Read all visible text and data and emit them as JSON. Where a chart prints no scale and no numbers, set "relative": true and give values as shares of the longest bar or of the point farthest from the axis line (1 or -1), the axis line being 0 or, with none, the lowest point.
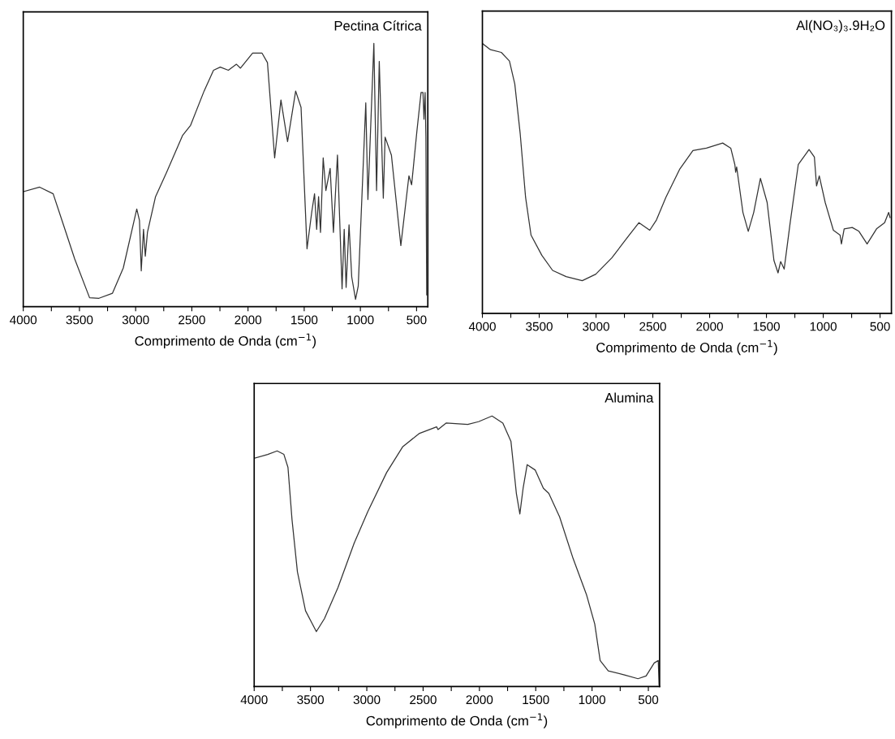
{
  "chart_data": [
    {
      "type": "line",
      "title": "Pectina Cítrica",
      "xlabel": "Comprimento de Onda (cm$^{−1}$)",
      "relative": true,
      "tick_labels": "x",
      "grid": false,
      "legend": false,
      "xlim": [
        4000,
        400
      ],
      "xticks": [
        4000,
        {
          "value": 3750,
          "label": null
        },
        3500,
        {
          "value": 3250,
          "label": null
        },
        3000,
        {
          "value": 2750,
          "label": null
        },
        2500,
        {
          "value": 2250,
          "label": null
        },
        2000,
        {
          "value": 1750,
          "label": null
        },
        1500,
        {
          "value": 1250,
          "label": null
        },
        1000,
        {
          "value": 750,
          "label": null
        },
        500
      ],
      "series": [
        {
          "color": "#333333",
          "x": [
            4000,
            3854,
            3734,
            3638,
            3542,
            3410,
            3326,
            3206,
            3110,
            2990,
            2966,
            2950,
            2930,
            2914,
            2895,
            2823,
            2727,
            2583,
            2511,
            2391,
            2307,
            2247,
            2175,
            2103,
            2067,
            1959,
            1875,
            1827,
            1763,
            1707,
            1648,
            1576,
            1528,
            1475,
            1432,
            1408,
            1389,
            1372,
            1355,
            1331,
            1307,
            1269,
            1240,
            1204,
            1163,
            1144,
            1127,
            1101,
            1077,
            1043,
            1019,
            952,
            933,
            880,
            856,
            832,
            796,
            780,
            724,
            640,
            568,
            544,
            497,
            460,
            443,
            434,
            424,
            417,
            410
          ],
          "values": [
            0.437,
            0.454,
            0.429,
            0.305,
            0.181,
            0.034,
            0.032,
            0.051,
            0.147,
            0.371,
            0.328,
            0.136,
            0.294,
            0.192,
            0.282,
            0.418,
            0.508,
            0.65,
            0.689,
            0.819,
            0.898,
            0.91,
            0.898,
            0.921,
            0.906,
            0.963,
            0.963,
            0.927,
            0.565,
            0.785,
            0.627,
            0.819,
            0.757,
            0.22,
            0.362,
            0.429,
            0.294,
            0.418,
            0.282,
            0.565,
            0.441,
            0.525,
            0.282,
            0.576,
            0.068,
            0.294,
            0.073,
            0.311,
            0.113,
            0.028,
            0.079,
            0.774,
            0.407,
            1.0,
            0.441,
            0.932,
            0.412,
            0.644,
            0.576,
            0.232,
            0.497,
            0.463,
            0.667,
            0.814,
            0.814,
            0.712,
            0.814,
            0.644,
            0.045
          ]
        }
      ]
    },
    {
      "type": "line",
      "title": "Al(NO₃)₃.9H₂O",
      "xlabel": "Comprimento de Onda (cm$^{−1}$)",
      "relative": true,
      "tick_labels": "x",
      "grid": false,
      "legend": false,
      "xlim": [
        4000,
        400
      ],
      "xticks": [
        4000,
        {
          "value": 3750,
          "label": null
        },
        3500,
        {
          "value": 3250,
          "label": null
        },
        3000,
        {
          "value": 2750,
          "label": null
        },
        2500,
        {
          "value": 2250,
          "label": null
        },
        2000,
        {
          "value": 1750,
          "label": null
        },
        1500,
        {
          "value": 1250,
          "label": null
        },
        1000,
        {
          "value": 750,
          "label": null
        },
        500
      ],
      "series": [
        {
          "color": "#333333",
          "x": [
            4000,
            3929,
            3834,
            3762,
            3715,
            3667,
            3620,
            3572,
            3477,
            3382,
            3263,
            3121,
            3002,
            2860,
            2717,
            2622,
            2527,
            2468,
            2385,
            2265,
            2147,
            2028,
            1885,
            1814,
            1778,
            1771,
            1762,
            1707,
            1660,
            1612,
            1553,
            1494,
            1434,
            1398,
            1375,
            1344,
            1291,
            1220,
            1125,
            1078,
            1059,
            1035,
            983,
            911,
            852,
            840,
            816,
            745,
            686,
            614,
            531,
            460,
            424,
            412
          ],
          "values": [
            1.0,
            0.977,
            0.967,
            0.935,
            0.85,
            0.664,
            0.43,
            0.29,
            0.215,
            0.159,
            0.136,
            0.121,
            0.145,
            0.206,
            0.285,
            0.336,
            0.308,
            0.346,
            0.43,
            0.533,
            0.603,
            0.612,
            0.631,
            0.612,
            0.551,
            0.523,
            0.542,
            0.374,
            0.304,
            0.374,
            0.5,
            0.411,
            0.196,
            0.15,
            0.192,
            0.164,
            0.336,
            0.551,
            0.607,
            0.579,
            0.472,
            0.509,
            0.411,
            0.308,
            0.29,
            0.257,
            0.313,
            0.318,
            0.304,
            0.257,
            0.313,
            0.336,
            0.374,
            0.355
          ]
        }
      ]
    },
    {
      "type": "line",
      "title": "Alumina",
      "xlabel": "Comprimento de Onda (cm$^{−1}$)",
      "relative": true,
      "tick_labels": "x",
      "grid": false,
      "legend": false,
      "xlim": [
        4000,
        400
      ],
      "xticks": [
        4000,
        {
          "value": 3750,
          "label": null
        },
        3500,
        {
          "value": 3250,
          "label": null
        },
        3000,
        {
          "value": 2750,
          "label": null
        },
        2500,
        {
          "value": 2250,
          "label": null
        },
        2000,
        {
          "value": 1750,
          "label": null
        },
        1500,
        {
          "value": 1250,
          "label": null
        },
        1000,
        {
          "value": 750,
          "label": null
        },
        500
      ],
      "series": [
        {
          "color": "#333333",
          "x": [
            4000,
            3880,
            3796,
            3736,
            3700,
            3664,
            3616,
            3544,
            3448,
            3376,
            3256,
            3112,
            2992,
            2824,
            2680,
            2536,
            2380,
            2368,
            2296,
            2104,
            2008,
            1888,
            1792,
            1720,
            1672,
            1641,
            1612,
            1576,
            1504,
            1432,
            1384,
            1288,
            1168,
            1048,
            976,
            928,
            856,
            712,
            592,
            520,
            448,
            412,
            405
          ],
          "values": [
            0.844,
            0.858,
            0.871,
            0.858,
            0.81,
            0.617,
            0.424,
            0.28,
            0.203,
            0.251,
            0.366,
            0.53,
            0.646,
            0.791,
            0.887,
            0.935,
            0.96,
            0.95,
            0.974,
            0.969,
            0.979,
            1.0,
            0.974,
            0.906,
            0.714,
            0.638,
            0.733,
            0.82,
            0.8,
            0.733,
            0.714,
            0.627,
            0.473,
            0.338,
            0.231,
            0.096,
            0.058,
            0.043,
            0.029,
            0.039,
            0.087,
            0.096,
            0.005
          ]
        }
      ]
    }
  ]
}
